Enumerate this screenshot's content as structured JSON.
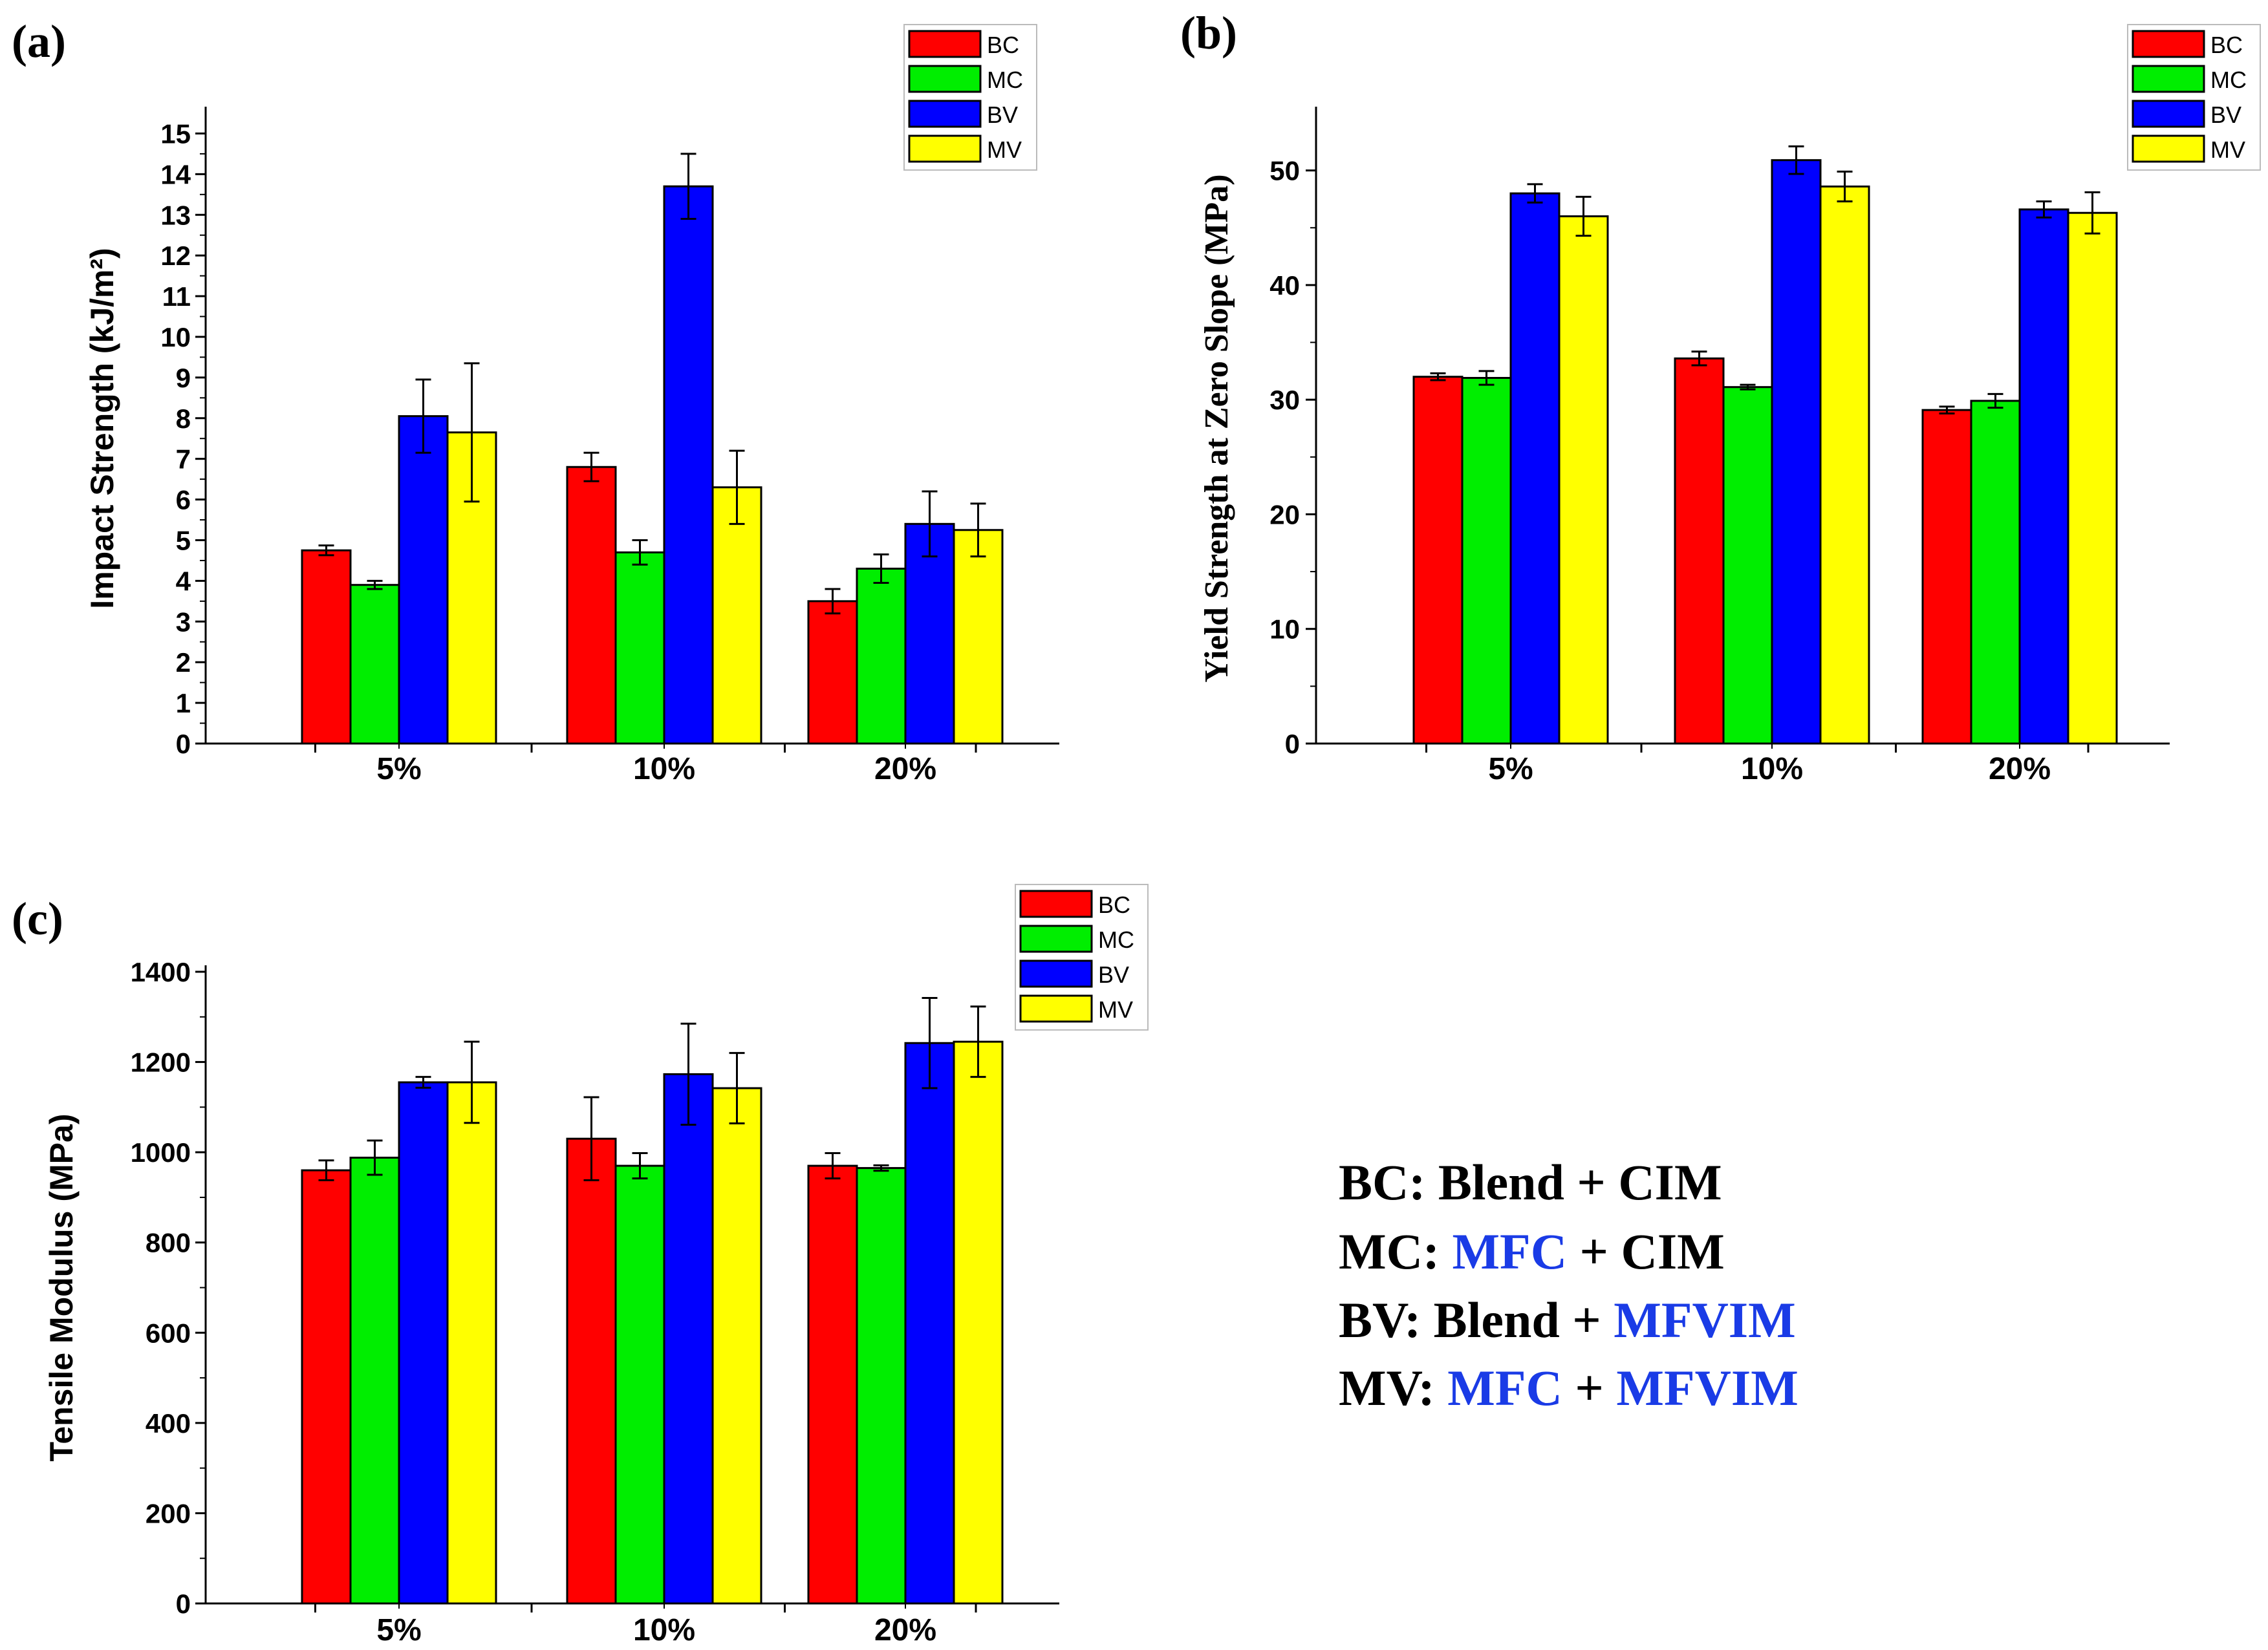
{
  "series_colors": {
    "BC": "#ff0000",
    "MC": "#00ee00",
    "BV": "#0000ff",
    "MV": "#ffff00"
  },
  "highlight_color": "#1a3be6",
  "definitions": [
    [
      {
        "t": "BC: Blend + CIM",
        "hl": false
      }
    ],
    [
      {
        "t": "MC: ",
        "hl": false
      },
      {
        "t": "MFC",
        "hl": true
      },
      {
        "t": " + CIM",
        "hl": false
      }
    ],
    [
      {
        "t": "BV: Blend + ",
        "hl": false
      },
      {
        "t": "MFVIM",
        "hl": true
      }
    ],
    [
      {
        "t": "MV: ",
        "hl": false
      },
      {
        "t": "MFC",
        "hl": true
      },
      {
        "t": " + ",
        "hl": false
      },
      {
        "t": "MFVIM",
        "hl": true
      }
    ]
  ],
  "chart_data": [
    {
      "panel": "(a)",
      "type": "bar",
      "categories": [
        "5%",
        "10%",
        "20%"
      ],
      "ylabel": "Impact Strength (kJ/m²)",
      "ylim": [
        0,
        15.5
      ],
      "yticks": [
        0,
        1,
        2,
        3,
        4,
        5,
        6,
        7,
        8,
        9,
        10,
        11,
        12,
        13,
        14,
        15
      ],
      "legend": "top-right",
      "series": [
        {
          "name": "BC",
          "values": [
            4.75,
            6.8,
            3.5
          ],
          "errors": [
            0.12,
            0.35,
            0.3
          ]
        },
        {
          "name": "MC",
          "values": [
            3.9,
            4.7,
            4.3
          ],
          "errors": [
            0.1,
            0.3,
            0.35
          ]
        },
        {
          "name": "BV",
          "values": [
            8.05,
            13.7,
            5.4
          ],
          "errors": [
            0.9,
            0.8,
            0.8
          ]
        },
        {
          "name": "MV",
          "values": [
            7.65,
            6.3,
            5.25
          ],
          "errors": [
            1.7,
            0.9,
            0.65
          ]
        }
      ]
    },
    {
      "panel": "(b)",
      "type": "bar",
      "categories": [
        "5%",
        "10%",
        "20%"
      ],
      "ylabel": "Yield Strength at Zero Slope (MPa)",
      "ylim": [
        0,
        55
      ],
      "yticks": [
        0,
        10,
        20,
        30,
        40,
        50
      ],
      "legend": "top-right",
      "series": [
        {
          "name": "BC",
          "values": [
            32.0,
            33.6,
            29.1
          ],
          "errors": [
            0.3,
            0.6,
            0.3
          ]
        },
        {
          "name": "MC",
          "values": [
            31.9,
            31.1,
            29.9
          ],
          "errors": [
            0.6,
            0.2,
            0.6
          ]
        },
        {
          "name": "BV",
          "values": [
            48.0,
            50.9,
            46.6
          ],
          "errors": [
            0.8,
            1.2,
            0.7
          ]
        },
        {
          "name": "MV",
          "values": [
            46.0,
            48.6,
            46.3
          ],
          "errors": [
            1.7,
            1.3,
            1.8
          ]
        }
      ]
    },
    {
      "panel": "(c)",
      "type": "bar",
      "categories": [
        "5%",
        "10%",
        "20%"
      ],
      "ylabel": "Tensile Modulus (MPa)",
      "ylim": [
        0,
        1400
      ],
      "yticks": [
        0,
        200,
        400,
        600,
        800,
        1000,
        1200,
        1400
      ],
      "legend": "top-right",
      "series": [
        {
          "name": "BC",
          "values": [
            960,
            1030,
            970
          ],
          "errors": [
            22,
            92,
            28
          ]
        },
        {
          "name": "MC",
          "values": [
            988,
            970,
            965
          ],
          "errors": [
            38,
            28,
            6
          ]
        },
        {
          "name": "BV",
          "values": [
            1155,
            1173,
            1242
          ],
          "errors": [
            12,
            112,
            100
          ]
        },
        {
          "name": "MV",
          "values": [
            1155,
            1142,
            1245
          ],
          "errors": [
            90,
            78,
            78
          ]
        }
      ]
    }
  ]
}
